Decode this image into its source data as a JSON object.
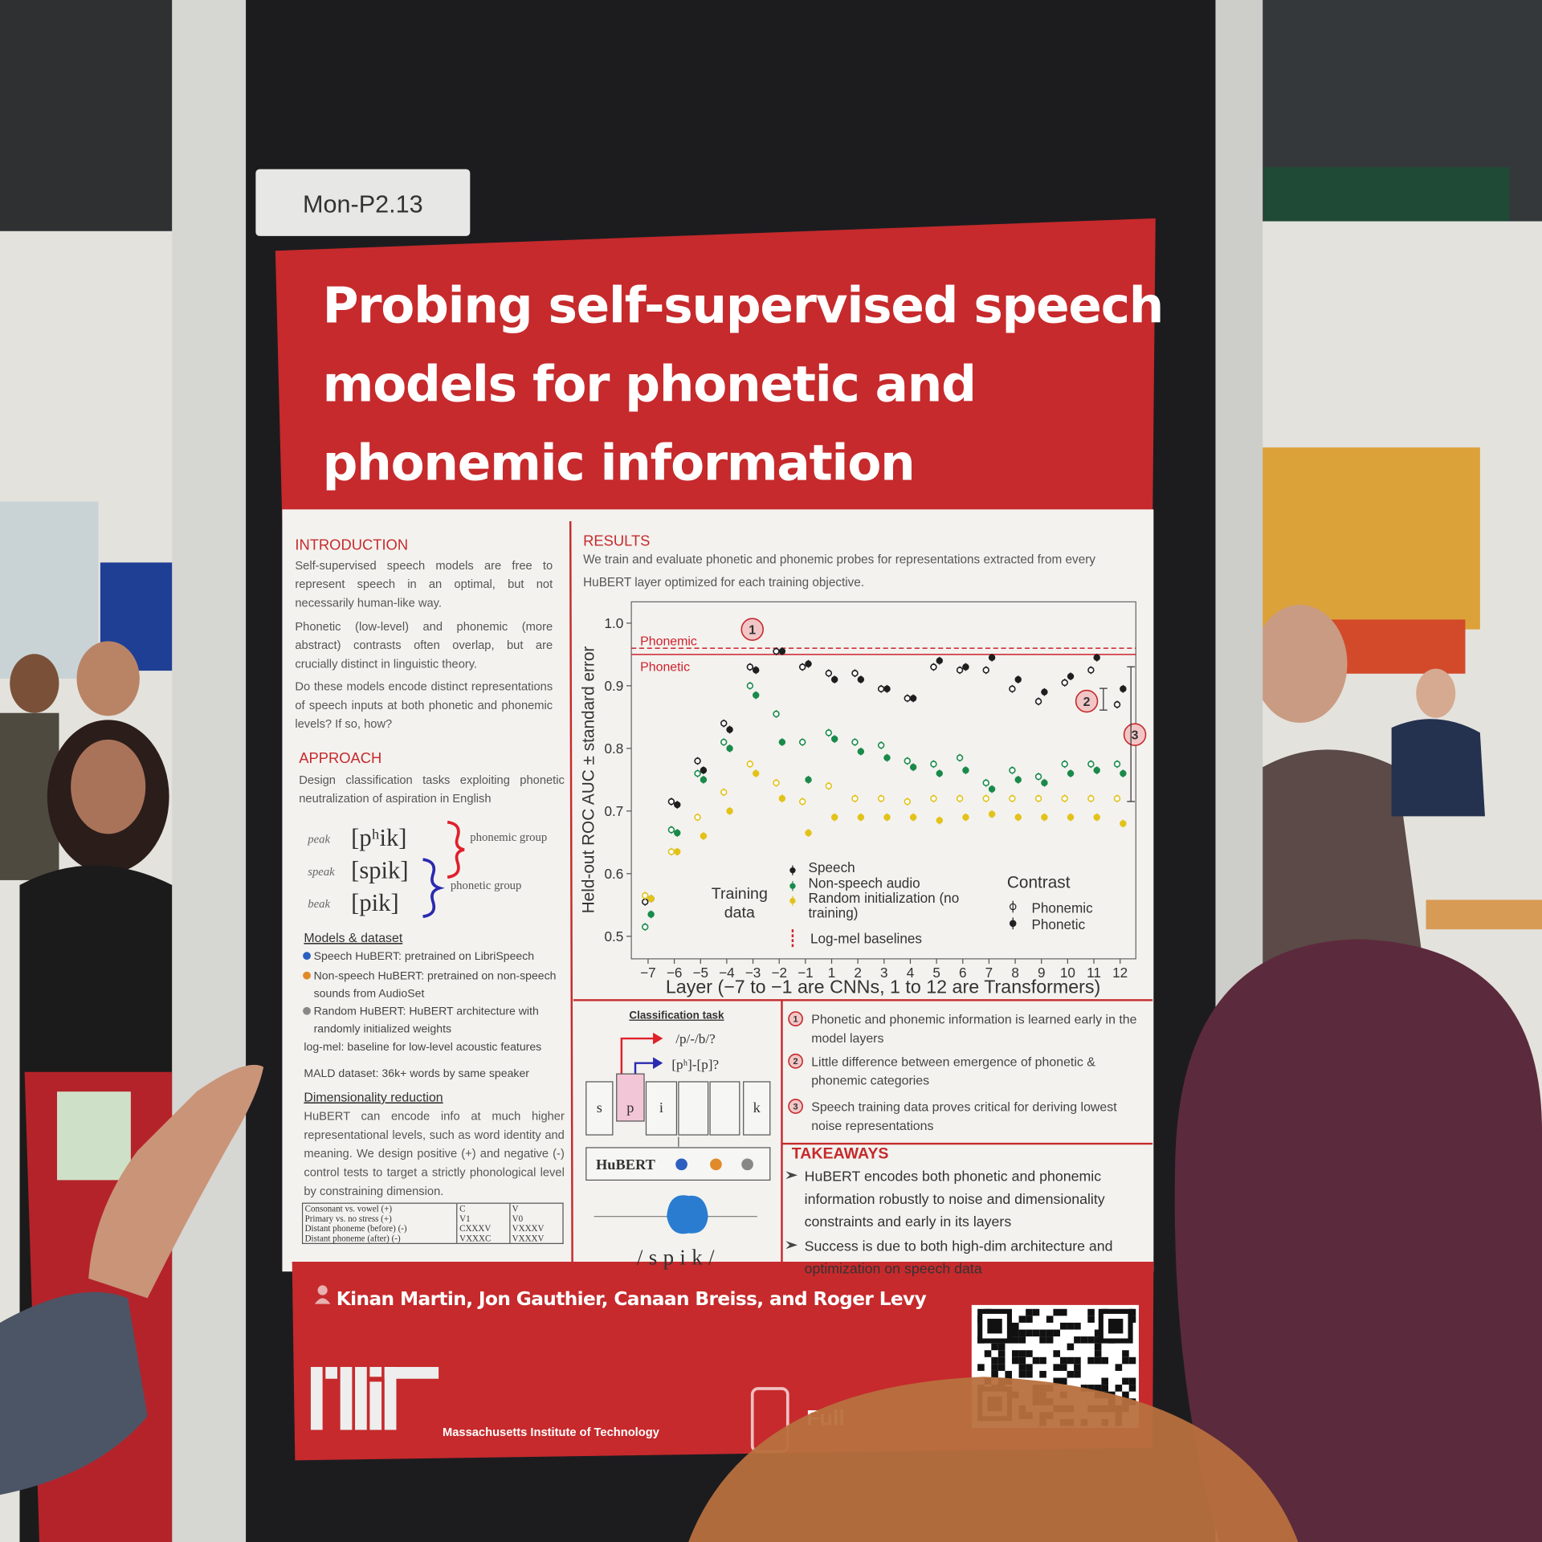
{
  "board_label": "Mon-P2.13",
  "poster": {
    "title_lines": [
      "Probing self-supervised speech",
      "models for phonetic and",
      "phonemic information"
    ],
    "introduction": {
      "heading": "INTRODUCTION",
      "paragraphs": [
        "Self-supervised speech models are free to represent speech in an optimal, but not necessarily human-like way.",
        "Phonetic (low-level) and phonemic (more abstract) contrasts often overlap, but are crucially distinct in linguistic theory.",
        "Do these models encode distinct representations of speech inputs at both phonetic and phonemic levels? If so, how?"
      ]
    },
    "approach": {
      "heading": "APPROACH",
      "text": "Design classification tasks exploiting phonetic neutralization of aspiration in English",
      "examples": [
        {
          "word": "peak",
          "transcription": "[pʰik]"
        },
        {
          "word": "speak",
          "transcription": "[spik]"
        },
        {
          "word": "beak",
          "transcription": "[pik]"
        }
      ],
      "groups": [
        "phonemic group",
        "phonetic group"
      ],
      "models_heading": "Models & dataset",
      "models": [
        "Speech HuBERT: pretrained on LibriSpeech",
        "Non-speech HuBERT: pretrained on non-speech sounds from AudioSet",
        "Random HuBERT: HuBERT architecture with randomly initialized weights",
        "log-mel: baseline for low-level acoustic features"
      ],
      "dataset": "MALD dataset: 36k+ words by same speaker",
      "dimensionality_heading": "Dimensionality reduction",
      "dimensionality_text": "HuBERT can encode info at much higher representational levels, such as word identity and meaning. We design positive (+) and negative (-) control tests to target a strictly phonological level by constraining dimension.",
      "table": [
        [
          "Consonant vs. vowel (+)",
          "C",
          "V"
        ],
        [
          "Primary vs. no stress (+)",
          "V1",
          "V0"
        ],
        [
          "Distant phoneme (before) (-)",
          "CXXXV",
          "VXXXV"
        ],
        [
          "Distant phoneme (after) (-)",
          "VXXXC",
          "VXXXV"
        ]
      ]
    },
    "results": {
      "heading": "RESULTS",
      "text": "We train and evaluate phonetic and phonemic probes for representations extracted from every HuBERT layer optimized for each training objective."
    },
    "classification_task": {
      "heading": "Classification task",
      "questions": [
        "/p/-/b/?",
        "[pʰ]-[p]?"
      ],
      "segments": [
        "s",
        "p",
        "i",
        "k"
      ],
      "model": "HuBERT",
      "word": "/spik/"
    },
    "findings": [
      {
        "number": "1",
        "text": "Phonetic and phonemic information is learned early in the model layers"
      },
      {
        "number": "2",
        "text": "Little difference between emergence of phonetic & phonemic categories"
      },
      {
        "number": "3",
        "text": "Speech training data proves critical for deriving lowest noise representations"
      }
    ],
    "takeaways": {
      "heading": "TAKEAWAYS",
      "items": [
        "HuBERT encodes both phonetic and phonemic information robustly to noise and dimensionality constraints and early in its layers",
        "Success is due to both high-dim architecture and optimization on speech data"
      ]
    },
    "authors": "Kinan Martin, Jon Gauthier, Canaan Breiss, and Roger Levy",
    "institution": "Massachusetts Institute of Technology",
    "link_text": "Full"
  },
  "chart_data": {
    "type": "dot",
    "y_label": "Held-out ROC AUC ± standard error",
    "x_label": "Layer (−7 to −1 are CNNs, 1 to 12 are Transformers)",
    "categories": [
      "−7",
      "−6",
      "−5",
      "−4",
      "−3",
      "−2",
      "−1",
      "1",
      "2",
      "3",
      "4",
      "5",
      "6",
      "7",
      "8",
      "9",
      "10",
      "11",
      "12"
    ],
    "ylim": [
      0.464,
      1.034
    ],
    "yticks": [
      0.5,
      0.6,
      0.7,
      0.8,
      0.9,
      {
        "value": 1,
        "label": "1.0"
      }
    ],
    "legend_title": "Training data",
    "contrast_title": "Contrast",
    "contrasts": [
      "Phonemic",
      "Phonetic"
    ],
    "series": [
      {
        "name": "Speech",
        "color": "#1e1e1e",
        "phonemic": [
          0.555,
          0.715,
          0.78,
          0.84,
          0.93,
          0.955,
          0.93,
          0.92,
          0.92,
          0.895,
          0.88,
          0.93,
          0.925,
          0.925,
          0.895,
          0.875,
          0.905,
          0.925,
          0.87
        ],
        "phonetic": [
          0.56,
          0.71,
          0.765,
          0.83,
          0.925,
          0.955,
          0.935,
          0.91,
          0.91,
          0.895,
          0.88,
          0.94,
          0.93,
          0.945,
          0.91,
          0.89,
          0.915,
          0.945,
          0.895
        ]
      },
      {
        "name": "Non-speech audio",
        "color": "#1a8a4a",
        "phonemic": [
          0.515,
          0.67,
          0.76,
          0.81,
          0.9,
          0.855,
          0.81,
          0.825,
          0.81,
          0.805,
          0.78,
          0.775,
          0.785,
          0.745,
          0.765,
          0.755,
          0.775,
          0.775,
          0.775
        ],
        "phonetic": [
          0.535,
          0.665,
          0.75,
          0.8,
          0.885,
          0.81,
          0.75,
          0.815,
          0.795,
          0.785,
          0.77,
          0.76,
          0.765,
          0.735,
          0.75,
          0.745,
          0.76,
          0.765,
          0.76
        ]
      },
      {
        "name": "Random initialization (no training)",
        "color": "#e3c21a",
        "phonemic": [
          0.565,
          0.635,
          0.69,
          0.73,
          0.775,
          0.745,
          0.715,
          0.74,
          0.72,
          0.72,
          0.715,
          0.72,
          0.72,
          0.72,
          0.72,
          0.72,
          0.72,
          0.72,
          0.72
        ],
        "phonetic": [
          0.56,
          0.635,
          0.66,
          0.7,
          0.76,
          0.72,
          0.665,
          0.69,
          0.69,
          0.69,
          0.69,
          0.685,
          0.69,
          0.695,
          0.69,
          0.69,
          0.69,
          0.69,
          0.68
        ]
      }
    ],
    "baseline_legend": "Log-mel baselines",
    "baseline_color": "#d0212d",
    "baselines": [
      {
        "name": "Phonemic",
        "value": 0.96,
        "dashed": true
      },
      {
        "name": "Phonetic",
        "value": 0.95,
        "dashed": false
      }
    ],
    "annotations": [
      "1",
      "2",
      "3"
    ]
  }
}
